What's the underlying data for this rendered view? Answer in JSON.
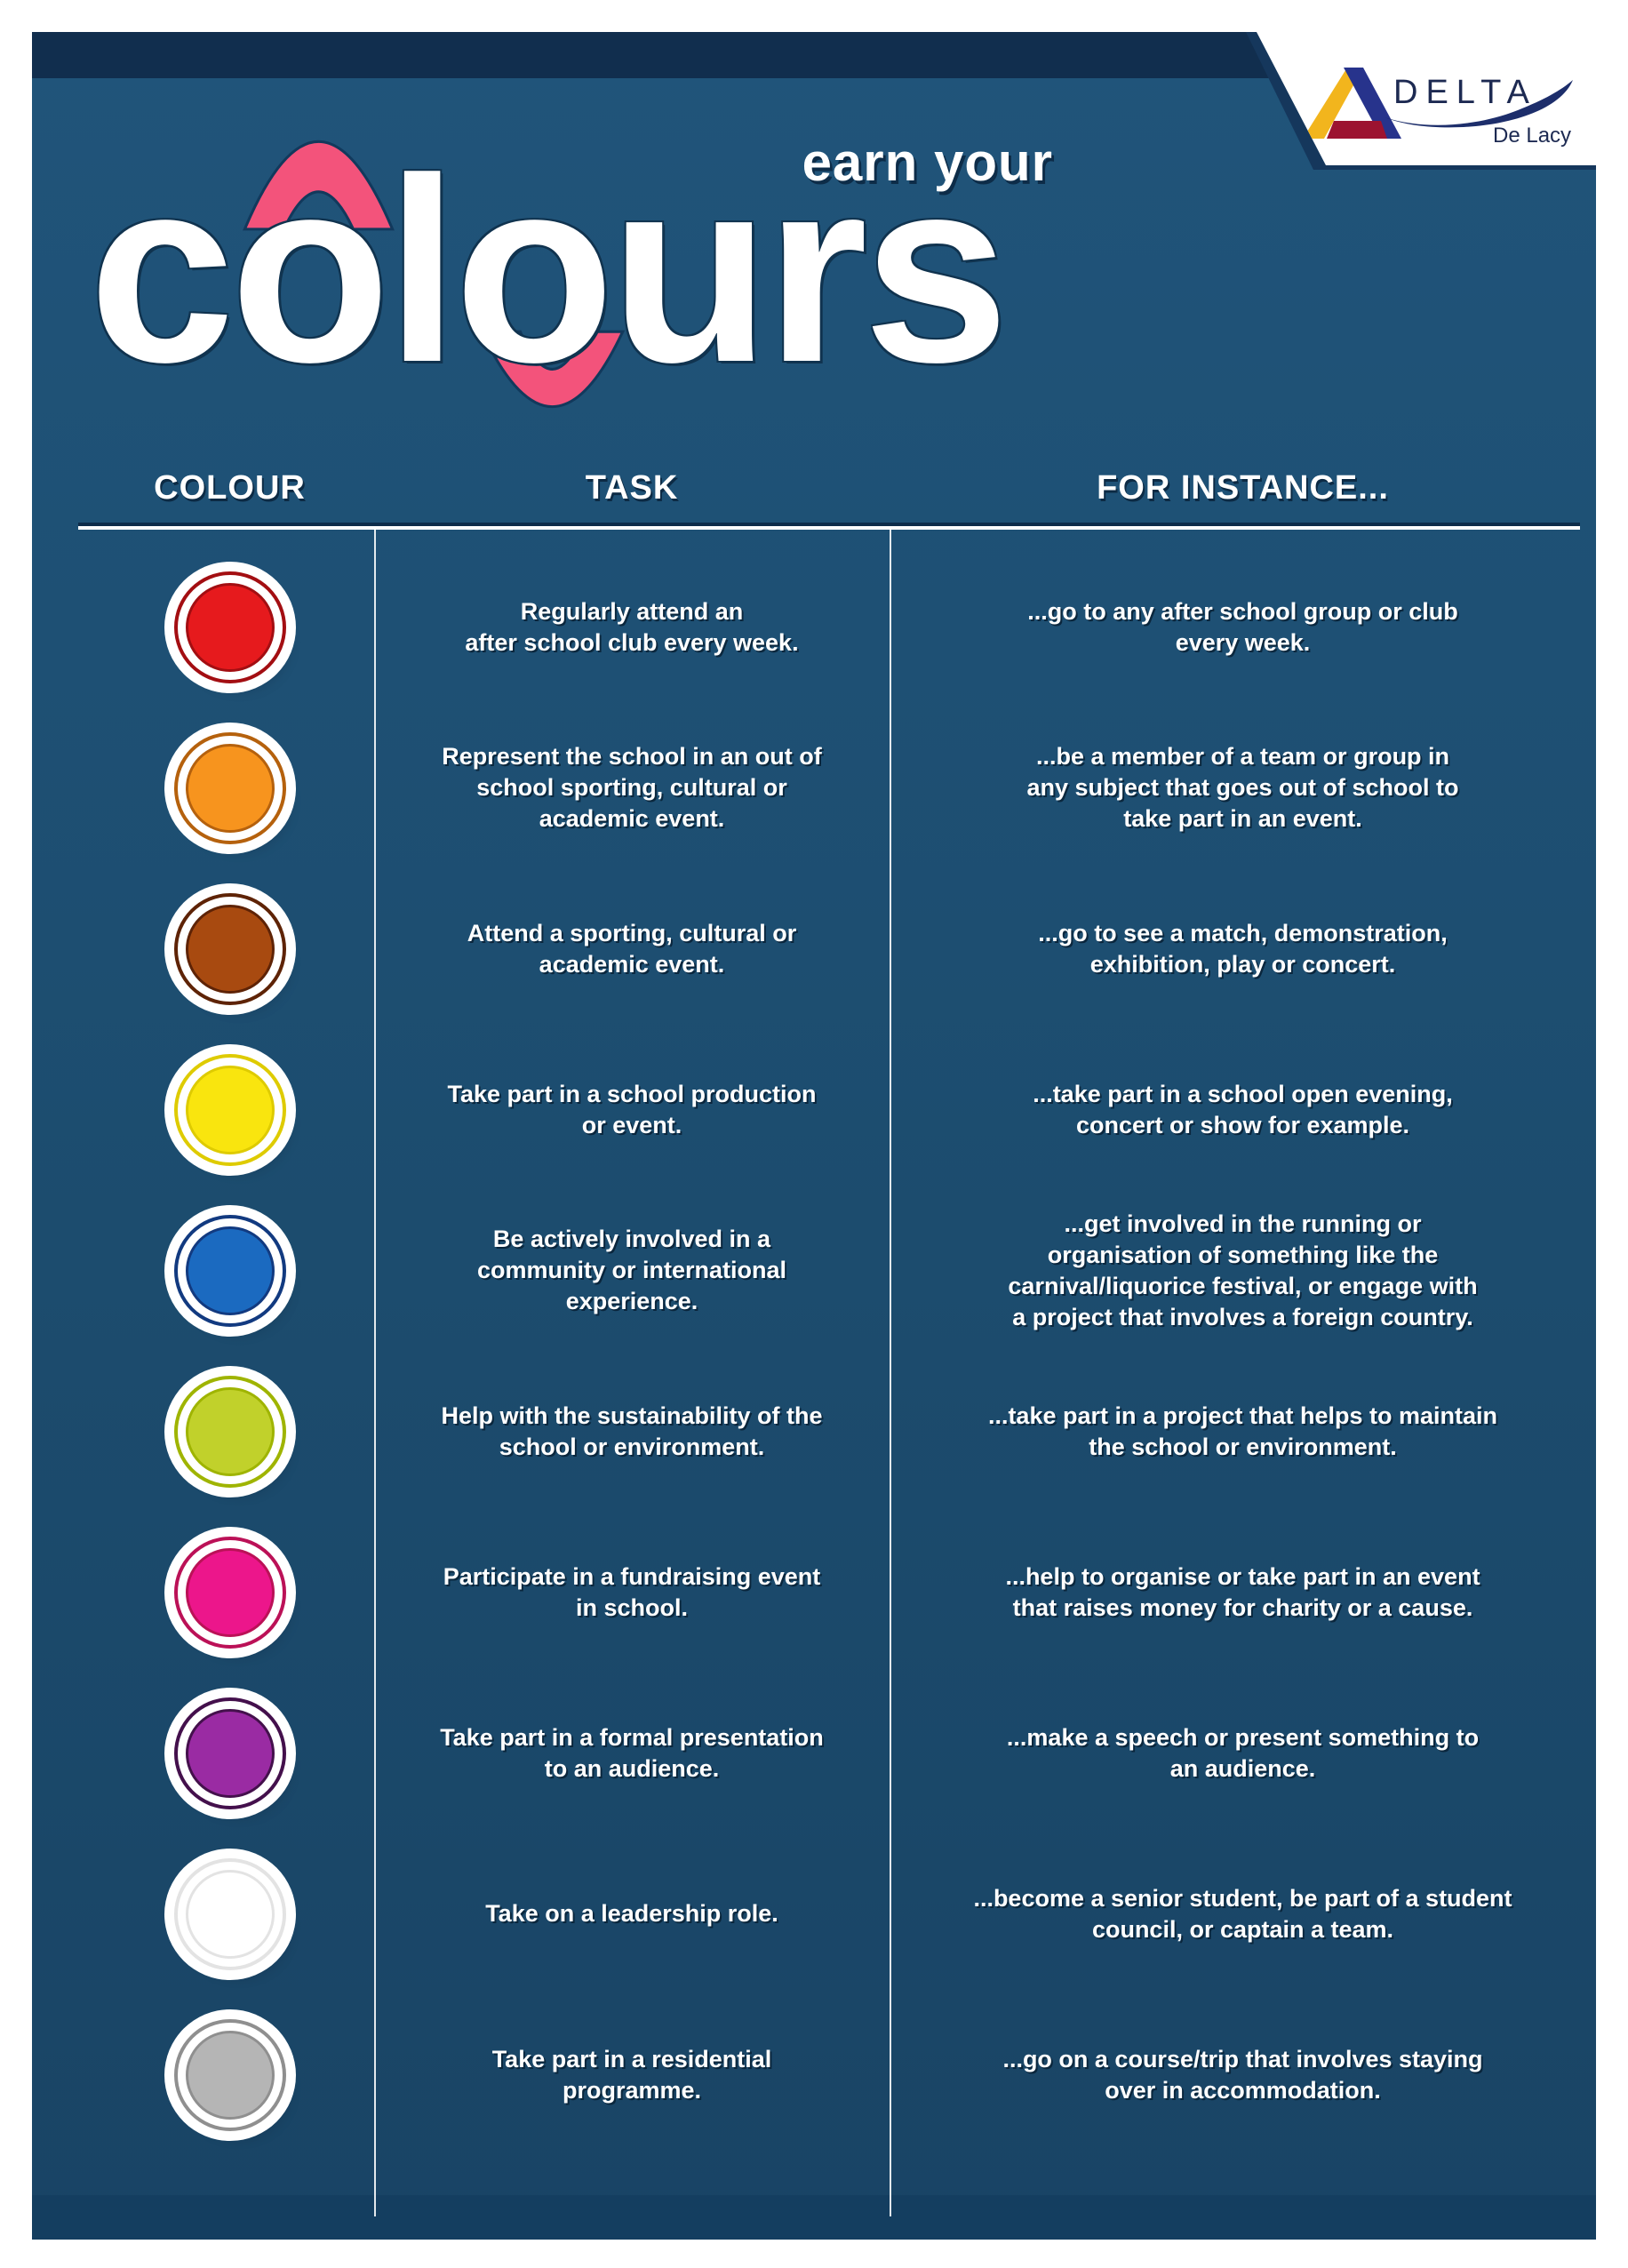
{
  "title": {
    "pre": "earn your",
    "main": "colours"
  },
  "logo": {
    "brand": "DELTA",
    "sub": "De Lacy"
  },
  "colors": {
    "poster_blue": "#1c4c6e",
    "top_strip": "#112e4e",
    "bottom_strip": "#143e60",
    "accent_pink": "#f3537b",
    "text": "#ffffff"
  },
  "table": {
    "headers": [
      "COLOUR",
      "TASK",
      "FOR INSTANCE..."
    ],
    "rows": [
      {
        "colour": "red",
        "fill": "#e61a1d",
        "ring": "#a30e12",
        "task": "Regularly attend an\nafter school club every week.",
        "instance": "...go to any after school group or club\nevery week."
      },
      {
        "colour": "orange",
        "fill": "#f7941e",
        "ring": "#b5610d",
        "task": "Represent the school in an out of\nschool sporting, cultural or\nacademic event.",
        "instance": "...be a member of a team or group in\nany subject that goes out of school to\ntake part in an event."
      },
      {
        "colour": "brown",
        "fill": "#a84a10",
        "ring": "#5e2306",
        "task": "Attend a sporting, cultural or\nacademic event.",
        "instance": "...go to see a match, demonstration,\nexhibition, play or concert."
      },
      {
        "colour": "yellow",
        "fill": "#f9e50e",
        "ring": "#decb00",
        "task": "Take part in a school production\nor event.",
        "instance": "...take part in a school open evening,\nconcert or show for example."
      },
      {
        "colour": "blue",
        "fill": "#1b6ac0",
        "ring": "#123a80",
        "task": "Be actively involved in a\ncommunity or international\nexperience.",
        "instance": "...get involved in the running or\norganisation of something like the\ncarnival/liquorice festival, or engage with\na project that involves a foreign country."
      },
      {
        "colour": "lime",
        "fill": "#c1d12b",
        "ring": "#9fb400",
        "task": "Help with the sustainability of the\nschool or environment.",
        "instance": "...take part in a project that helps to maintain\nthe school or environment."
      },
      {
        "colour": "pink",
        "fill": "#ec168b",
        "ring": "#bb1157",
        "task": "Participate in a fundraising event\nin school.",
        "instance": "...help to organise or take part in an event\nthat raises money for charity or a cause."
      },
      {
        "colour": "purple",
        "fill": "#9a2ba3",
        "ring": "#44104c",
        "task": "Take part in a formal presentation\nto an audience.",
        "instance": "...make a speech or present something to\nan audience."
      },
      {
        "colour": "white",
        "fill": "#ffffff",
        "ring": "#e3e3e3",
        "task": "Take on a leadership role.",
        "instance": "...become a senior student, be part of a student\ncouncil, or captain a team."
      },
      {
        "colour": "grey",
        "fill": "#b5b5b5",
        "ring": "#8f8f8f",
        "task": "Take part in a residential\nprogramme.",
        "instance": "...go on a course/trip that involves staying\nover in accommodation."
      }
    ]
  }
}
